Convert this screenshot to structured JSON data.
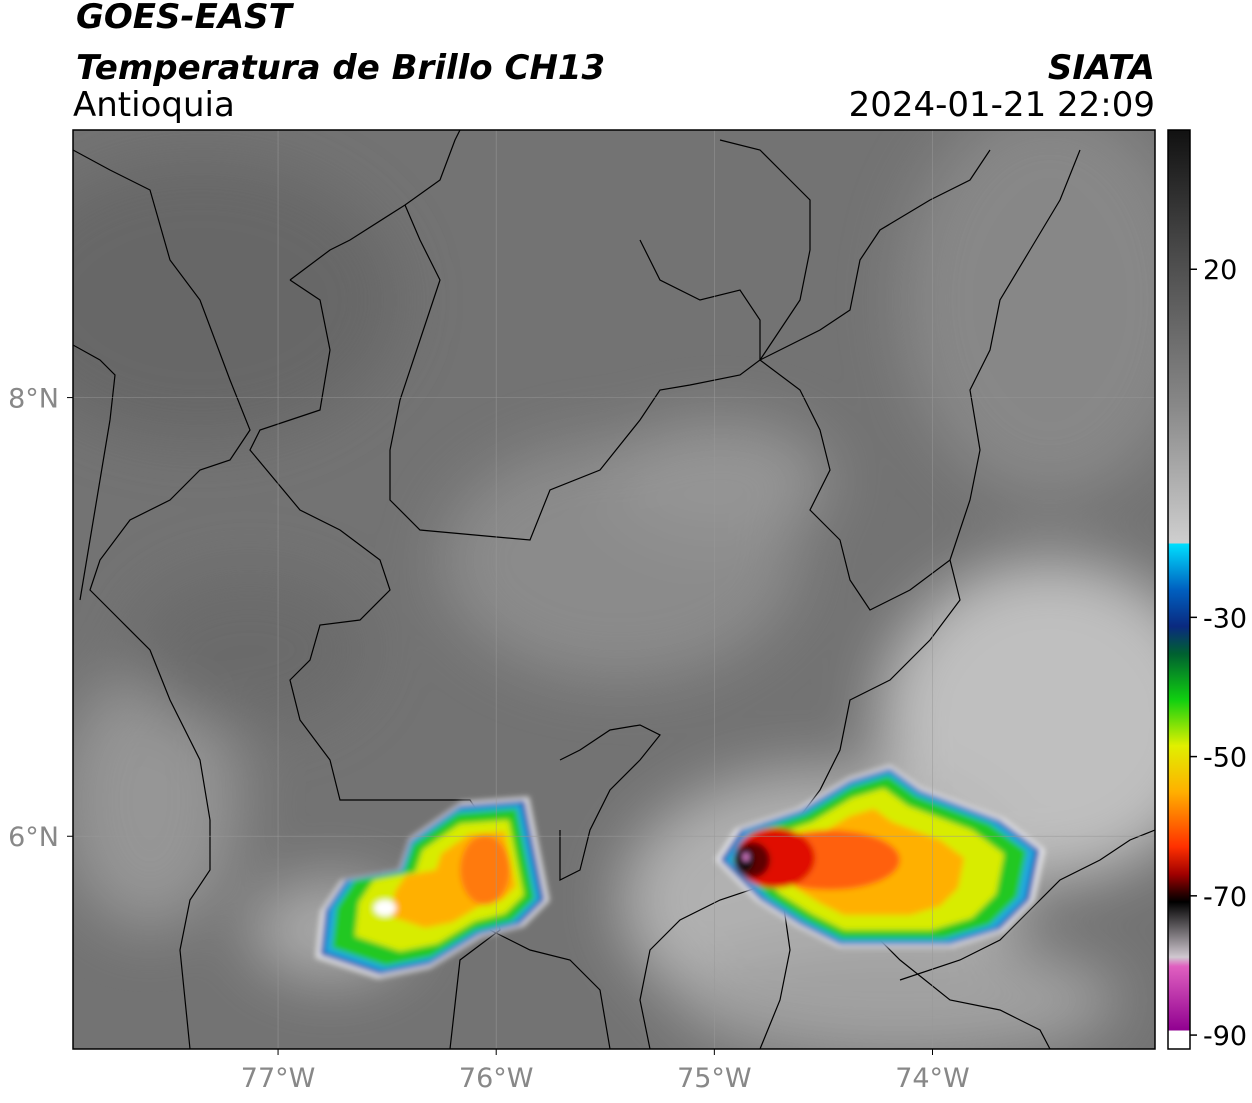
{
  "map": {
    "title": "GOES-EAST",
    "subtitle": "Temperatura de Brillo CH13",
    "region": "Antioquia",
    "source": "SIATA",
    "datetime": "2024-01-21 22:09",
    "lonlim": [
      -77.94,
      -72.98
    ],
    "latlim": [
      5.03,
      9.22
    ],
    "lon_ticks": [
      {
        "value": -77,
        "label": "77°W"
      },
      {
        "value": -76,
        "label": "76°W"
      },
      {
        "value": -75,
        "label": "75°W"
      },
      {
        "value": -74,
        "label": "74°W"
      }
    ],
    "lat_ticks": [
      {
        "value": 8,
        "label": "8°N"
      },
      {
        "value": 6,
        "label": "6°N"
      }
    ],
    "colorbar": {
      "lim": [
        -92,
        40
      ],
      "ticks": [
        20,
        -30,
        -50,
        -70,
        -90
      ]
    }
  }
}
